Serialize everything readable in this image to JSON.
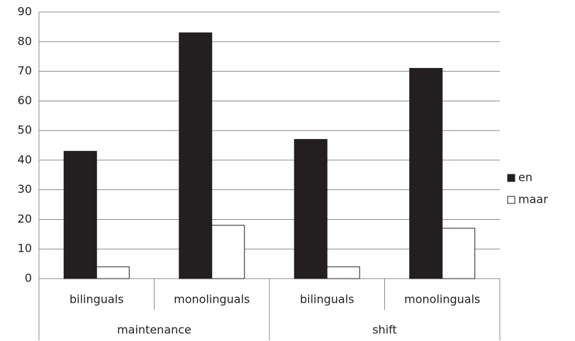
{
  "chart_data": {
    "type": "bar",
    "groups": [
      {
        "name": "maintenance",
        "categories": [
          "bilinguals",
          "monolinguals"
        ]
      },
      {
        "name": "shift",
        "categories": [
          "bilinguals",
          "monolinguals"
        ]
      }
    ],
    "series": [
      {
        "name": "en",
        "color": "#231f20",
        "values": [
          43,
          83,
          47,
          71
        ]
      },
      {
        "name": "maar",
        "color": "#ffffff",
        "values": [
          4,
          18,
          4,
          17
        ]
      }
    ],
    "ylim": [
      0,
      90
    ],
    "yticks": [
      0,
      10,
      20,
      30,
      40,
      50,
      60,
      70,
      80,
      90
    ],
    "grid": true,
    "legend": "right"
  }
}
